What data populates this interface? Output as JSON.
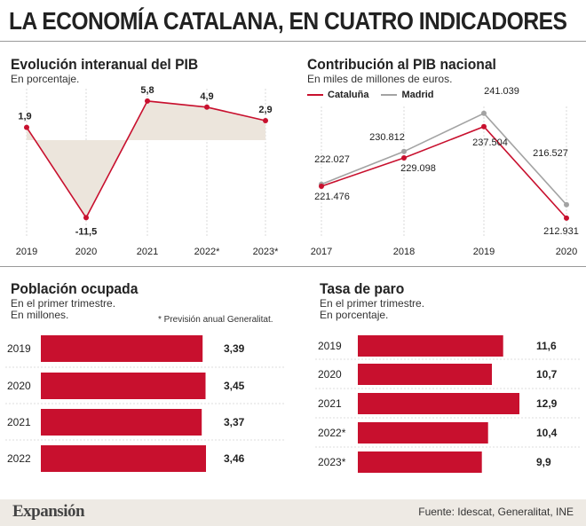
{
  "title": "LA ECONOMÍA CATALANA, EN CUATRO INDICADORES",
  "colors": {
    "red": "#c8102e",
    "gray": "#a3a3a3",
    "area": "#ece5dc",
    "footer_bg": "#eeeae4"
  },
  "chart_data": [
    {
      "id": "pib",
      "type": "area",
      "title": "Evolución interanual del PIB",
      "subtitle": "En porcentaje.",
      "categories": [
        "2019",
        "2020",
        "2021",
        "2022*",
        "2023*"
      ],
      "series": [
        {
          "values": [
            1.9,
            -11.5,
            5.8,
            4.9,
            2.9
          ]
        }
      ],
      "value_labels": [
        "1,9",
        "-11,5",
        "5,8",
        "4,9",
        "2,9"
      ],
      "grid": true
    },
    {
      "id": "contribucion",
      "type": "line",
      "title": "Contribución al PIB nacional",
      "subtitle": "En miles de millones de euros.",
      "categories": [
        "2017",
        "2018",
        "2019",
        "2020"
      ],
      "series": [
        {
          "name": "Cataluña",
          "values": [
            221.476,
            229.098,
            237.504,
            212.931
          ],
          "labels": [
            "221.476",
            "229.098",
            "237.504",
            "212.931"
          ]
        },
        {
          "name": "Madrid",
          "values": [
            222.027,
            230.812,
            241.039,
            216.527
          ],
          "labels": [
            "222.027",
            "230.812",
            "241.039",
            "216.527"
          ]
        }
      ],
      "legend": "top-left",
      "grid": true
    },
    {
      "id": "poblacion",
      "type": "bar",
      "title": "Población ocupada",
      "subtitle_lines": [
        "En el primer trimestre.",
        "En millones."
      ],
      "categories": [
        "2019",
        "2020",
        "2021",
        "2022"
      ],
      "values": [
        3.39,
        3.45,
        3.37,
        3.46
      ],
      "value_labels": [
        "3,39",
        "3,45",
        "3,37",
        "3,46"
      ]
    },
    {
      "id": "paro",
      "type": "bar",
      "title": "Tasa de paro",
      "subtitle_lines": [
        "En el primer trimestre.",
        "En porcentaje."
      ],
      "categories": [
        "2019",
        "2020",
        "2021",
        "2022*",
        "2023*"
      ],
      "values": [
        11.6,
        10.7,
        12.9,
        10.4,
        9.9
      ],
      "value_labels": [
        "11,6",
        "10,7",
        "12,9",
        "10,4",
        "9,9"
      ]
    }
  ],
  "note": "* Previsión anual Generalitat.",
  "footer": {
    "brand": "Expansión",
    "source": "Fuente: Idescat, Generalitat, INE"
  }
}
